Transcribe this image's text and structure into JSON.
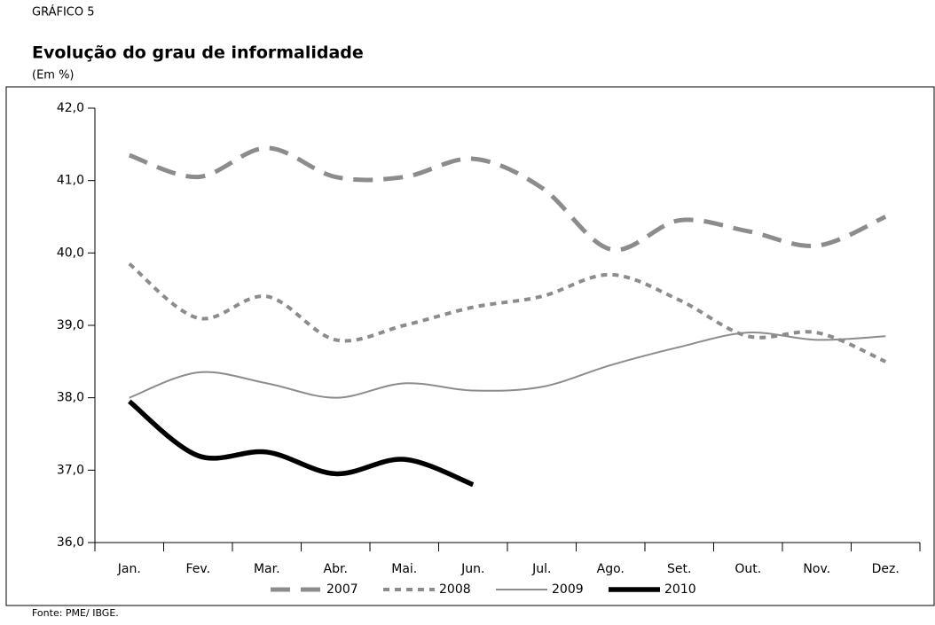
{
  "chart_data": {
    "type": "line",
    "label": "GRÁFICO 5",
    "title": "Evolução do grau de informalidade",
    "subtitle": "(Em %)",
    "source": "Fonte: PME/ IBGE.",
    "categories": [
      "Jan.",
      "Fev.",
      "Mar.",
      "Abr.",
      "Mai.",
      "Jun.",
      "Jul.",
      "Ago.",
      "Set.",
      "Out.",
      "Nov.",
      "Dez."
    ],
    "series": [
      {
        "name": "2007",
        "color": "#8c8c8c",
        "line_style": "dashed",
        "values": [
          41.35,
          41.05,
          41.45,
          41.05,
          41.05,
          41.3,
          40.9,
          40.05,
          40.45,
          40.3,
          40.1,
          40.5
        ]
      },
      {
        "name": "2008",
        "color": "#8c8c8c",
        "line_style": "dotted",
        "values": [
          39.85,
          39.1,
          39.4,
          38.8,
          39.0,
          39.25,
          39.4,
          39.7,
          39.35,
          38.85,
          38.9,
          38.5
        ]
      },
      {
        "name": "2009",
        "color": "#8c8c8c",
        "line_style": "solid",
        "values": [
          38.0,
          38.35,
          38.2,
          38.0,
          38.2,
          38.1,
          38.15,
          38.45,
          38.7,
          38.9,
          38.8,
          38.85
        ]
      },
      {
        "name": "2010",
        "color": "#000000",
        "line_style": "bold",
        "values": [
          37.95,
          37.2,
          37.25,
          36.95,
          37.15,
          36.8,
          null,
          null,
          null,
          null,
          null,
          null
        ]
      }
    ],
    "ylim": [
      36,
      42
    ],
    "yticks": [
      {
        "value": 36,
        "label": "36,0"
      },
      {
        "value": 37,
        "label": "37,0"
      },
      {
        "value": 38,
        "label": "38,0"
      },
      {
        "value": 39,
        "label": "39,0"
      },
      {
        "value": 40,
        "label": "40,0"
      },
      {
        "value": 41,
        "label": "41,0"
      },
      {
        "value": 42,
        "label": "42,0"
      }
    ],
    "smooth": true
  }
}
